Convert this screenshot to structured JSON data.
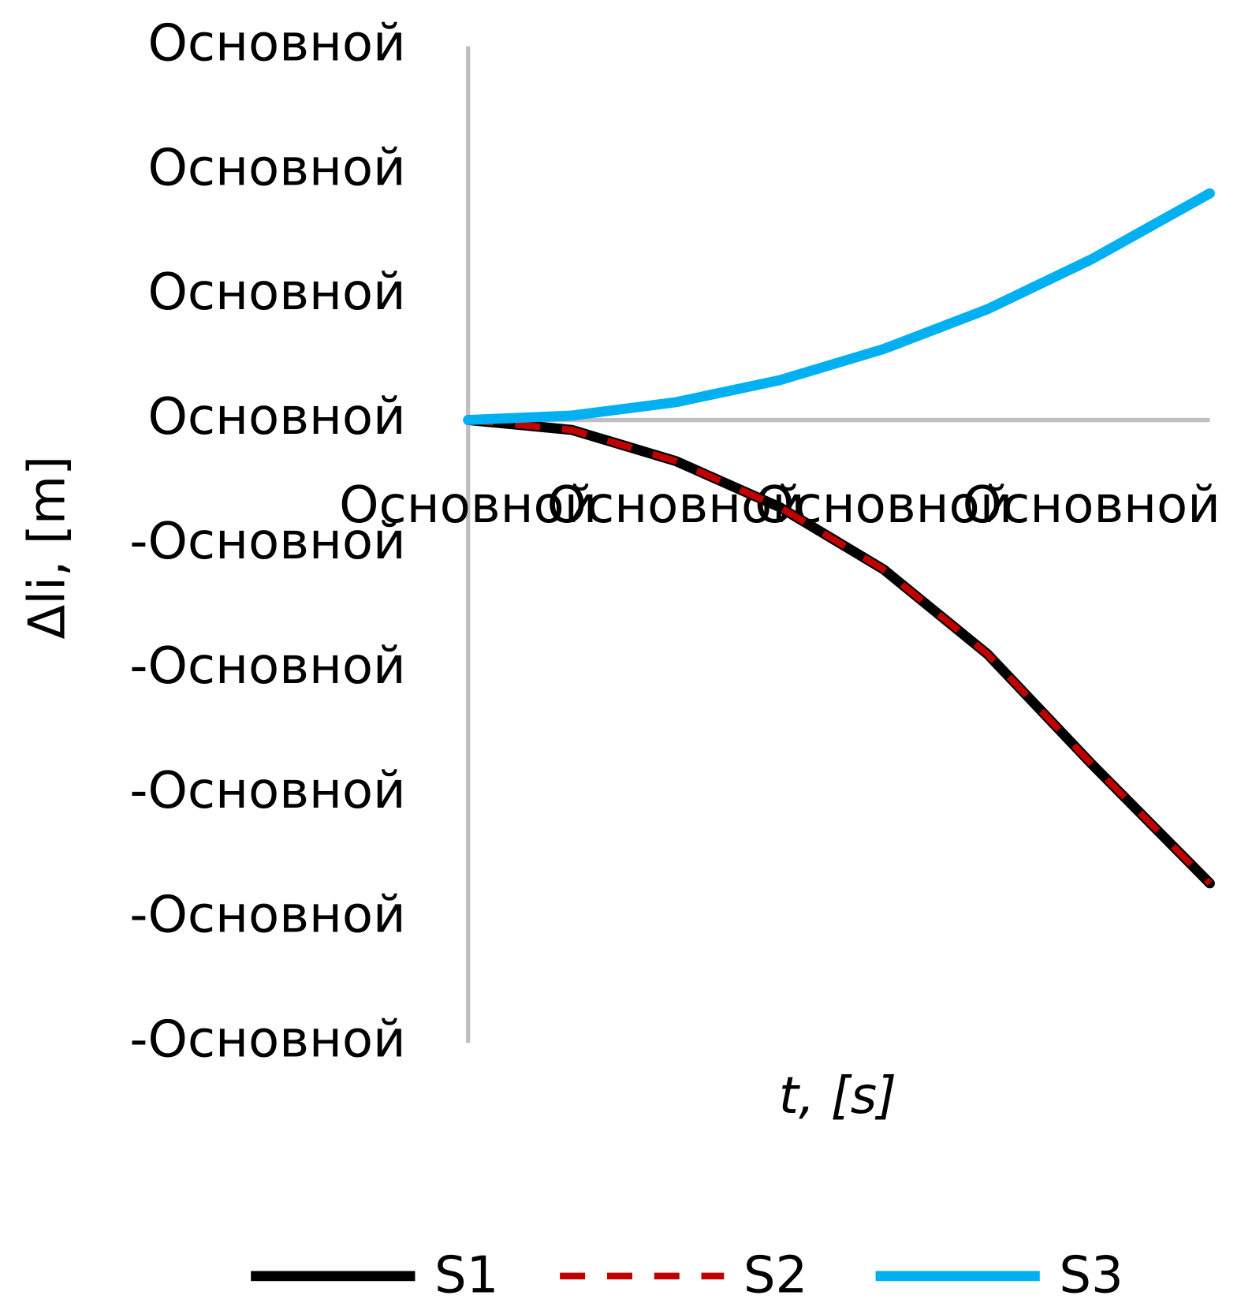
{
  "chart_data": {
    "type": "line",
    "x_label": "t, [s]",
    "y_label": "Δli, [m]",
    "x": [
      0,
      0.5,
      1,
      1.5,
      2,
      2.5,
      3,
      3.57
    ],
    "series": [
      {
        "name": "S1",
        "color": "#000000",
        "values": [
          0,
          -0.08,
          -0.33,
          -0.7,
          -1.2,
          -1.88,
          -2.76,
          -3.72
        ]
      },
      {
        "name": "S2",
        "color": "#c00000",
        "values": [
          0,
          -0.08,
          -0.33,
          -0.7,
          -1.2,
          -1.88,
          -2.76,
          -3.72
        ]
      },
      {
        "name": "S3",
        "color": "#00b0f0",
        "values": [
          0,
          0.036,
          0.143,
          0.32,
          0.57,
          0.89,
          1.29,
          1.82
        ]
      }
    ],
    "xlim": [
      0,
      3.57
    ],
    "xticks": [
      {
        "value": 0,
        "label": "Основной"
      },
      {
        "value": 1,
        "label": "Основной"
      },
      {
        "value": 2,
        "label": "Основной"
      },
      {
        "value": 3,
        "label": "Основной"
      }
    ],
    "ylim": [
      -5,
      3
    ],
    "yticks": [
      {
        "value": 3,
        "label": "Основной"
      },
      {
        "value": 2,
        "label": "Основной"
      },
      {
        "value": 1,
        "label": "Основной"
      },
      {
        "value": 0,
        "label": "Основной"
      },
      {
        "value": -1,
        "label": "-Основной"
      },
      {
        "value": -2,
        "label": "-Основной"
      },
      {
        "value": -3,
        "label": "-Основной"
      },
      {
        "value": -4,
        "label": "-Основной"
      },
      {
        "value": -5,
        "label": "-Основной"
      }
    ],
    "legend": "bottom"
  }
}
